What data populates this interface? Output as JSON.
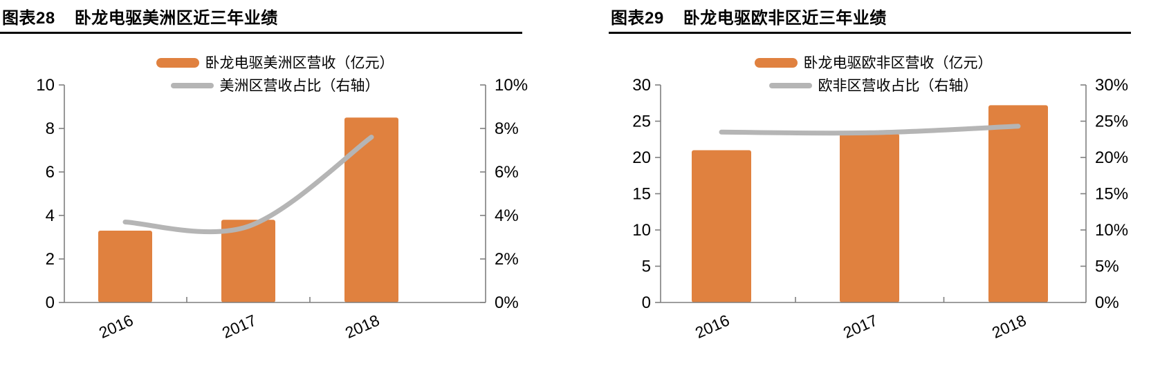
{
  "page": {
    "background": "#FFFFFF"
  },
  "colors": {
    "bar": "#E0813F",
    "line": "#B5B5B5",
    "axis": "#7F7F7F",
    "text": "#000000",
    "rule": "#000000"
  },
  "figures": [
    {
      "label": "图表28",
      "title": "卧龙电驱美洲区近三年业绩"
    },
    {
      "label": "图表29",
      "title": "卧龙电驱欧非区近三年业绩"
    }
  ],
  "chart_data": [
    {
      "type": "bar",
      "subtype": "bar-plus-line-dual-axis",
      "title": "图表28 卧龙电驱美洲区近三年业绩",
      "categories": [
        "2016",
        "2017",
        "2018"
      ],
      "series": [
        {
          "name": "卧龙电驱美洲区营收（亿元）",
          "type": "bar",
          "axis": "left",
          "values": [
            3.3,
            3.8,
            8.5
          ]
        },
        {
          "name": "美洲区营收占比（右轴）",
          "type": "line",
          "axis": "right",
          "unit": "%",
          "values": [
            3.7,
            3.5,
            7.6
          ]
        }
      ],
      "left_axis": {
        "min": 0,
        "max": 10,
        "tick_labels": [
          "0",
          "2",
          "4",
          "6",
          "8",
          "10"
        ]
      },
      "right_axis": {
        "min": 0,
        "max": 10,
        "tick_labels": [
          "0%",
          "2%",
          "4%",
          "6%",
          "8%",
          "10%"
        ]
      },
      "legend_position": "top-center",
      "grid": false
    },
    {
      "type": "bar",
      "subtype": "bar-plus-line-dual-axis",
      "title": "图表29 卧龙电驱欧非区近三年业绩",
      "categories": [
        "2016",
        "2017",
        "2018"
      ],
      "series": [
        {
          "name": "卧龙电驱欧非区营收（亿元）",
          "type": "bar",
          "axis": "left",
          "values": [
            21.0,
            23.3,
            27.2
          ]
        },
        {
          "name": "欧非区营收占比（右轴）",
          "type": "line",
          "axis": "right",
          "unit": "%",
          "values": [
            23.5,
            23.4,
            24.3
          ]
        }
      ],
      "left_axis": {
        "min": 0,
        "max": 30,
        "tick_labels": [
          "0",
          "5",
          "10",
          "15",
          "20",
          "25",
          "30"
        ]
      },
      "right_axis": {
        "min": 0,
        "max": 30,
        "tick_labels": [
          "0%",
          "5%",
          "10%",
          "15%",
          "20%",
          "25%",
          "30%"
        ]
      },
      "legend_position": "top-center",
      "grid": false
    }
  ]
}
